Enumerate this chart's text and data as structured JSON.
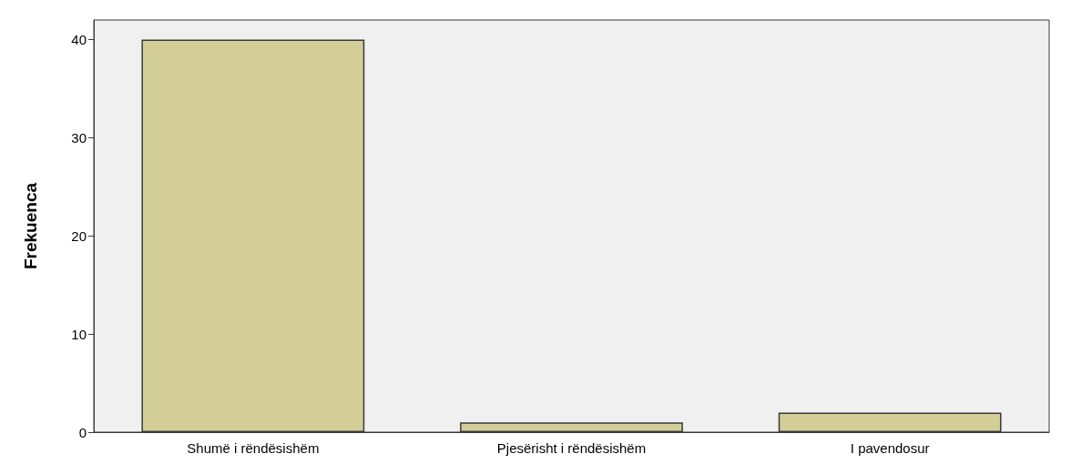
{
  "chart_data": {
    "type": "bar",
    "ylabel": "Frekuenca",
    "categories": [
      "Shumë i rëndësishëm",
      "Pjesërisht i rëndësishëm",
      "I pavendosur"
    ],
    "values": [
      40,
      1,
      2
    ],
    "color": "#d3ce98",
    "ylim": [
      0,
      42
    ],
    "yticks": [
      0,
      10,
      20,
      30,
      40
    ],
    "grid": false
  }
}
